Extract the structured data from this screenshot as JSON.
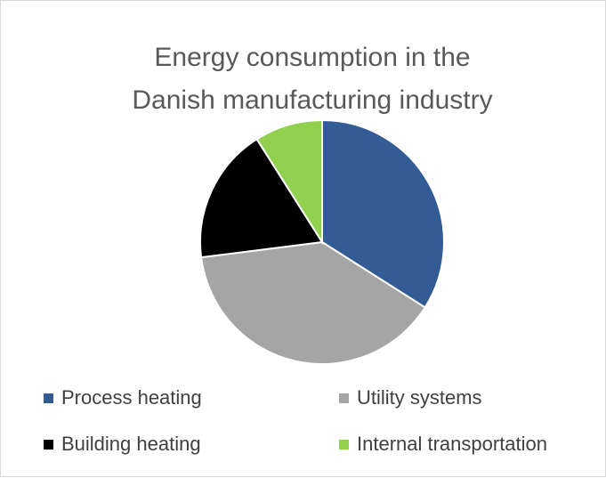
{
  "chart_data": {
    "type": "pie",
    "title": "Energy consumption in the Danish manufacturing industry",
    "series": [
      {
        "name": "Process heating",
        "color": "#335c95",
        "values": [
          34
        ]
      },
      {
        "name": "Utility systems",
        "color": "#a5a5a5",
        "values": [
          39
        ]
      },
      {
        "name": "Building heating",
        "color": "#000000",
        "values": [
          18
        ]
      },
      {
        "name": "Internal transportation",
        "color": "#92d050",
        "values": [
          9
        ]
      }
    ],
    "legend": "bottom"
  }
}
